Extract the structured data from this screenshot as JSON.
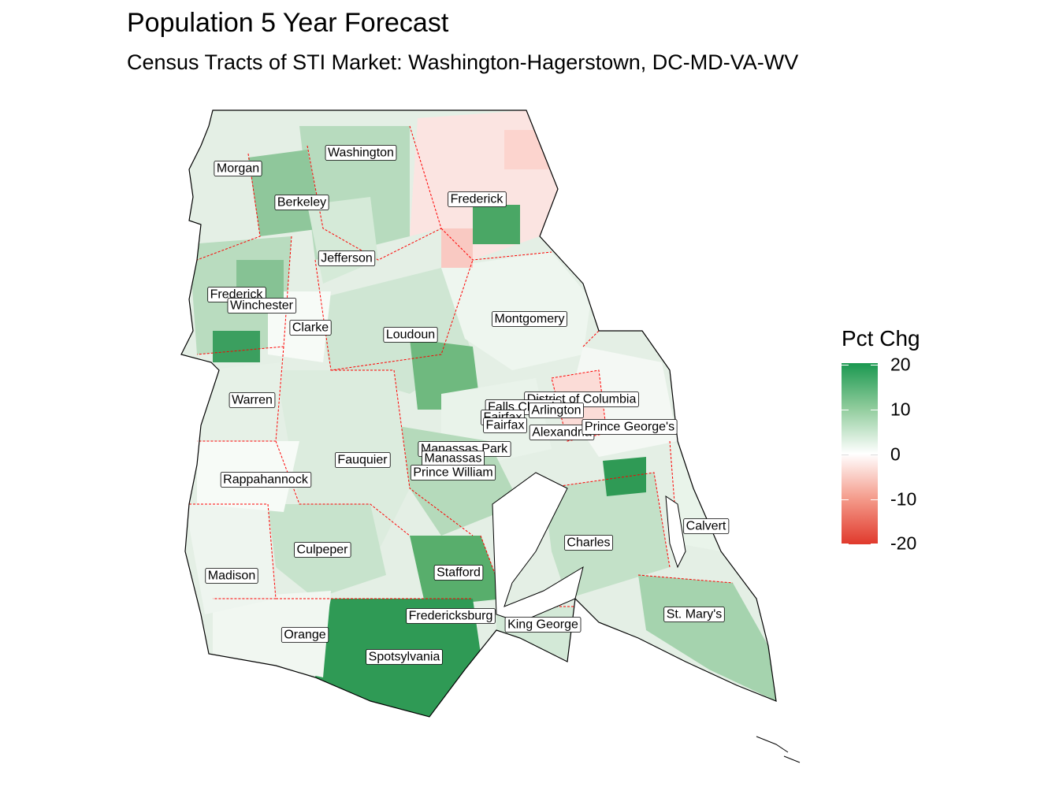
{
  "title": "Population 5 Year Forecast",
  "subtitle": "Census Tracts of STI Market: Washington-Hagerstown, DC-MD-VA-WV",
  "legend": {
    "title": "Pct Chg",
    "ticks": [
      "20",
      "10",
      "0",
      "-10",
      "-20"
    ],
    "colors": {
      "high": "#1a9850",
      "mid": "#ffffff",
      "low": "#e0392c"
    }
  },
  "counties": [
    "Washington",
    "Morgan",
    "Berkeley",
    "Frederick",
    "Jefferson",
    "Frederick",
    "Winchester",
    "Clarke",
    "Montgomery",
    "Loudoun",
    "Warren",
    "District of Columbia",
    "Falls Church",
    "Arlington",
    "Fairfax",
    "Fairfax",
    "Alexandria",
    "Prince George's",
    "Manassas Park",
    "Manassas",
    "Prince William",
    "Fauquier",
    "Rappahannock",
    "Calvert",
    "Charles",
    "Culpeper",
    "Madison",
    "Stafford",
    "Fredericksburg",
    "King George",
    "St. Mary's",
    "Orange",
    "Spotsylvania"
  ],
  "colors": {
    "background": "#ffffff",
    "county_border": "#ff0000",
    "outline": "#000000",
    "water": "#ffffff"
  }
}
